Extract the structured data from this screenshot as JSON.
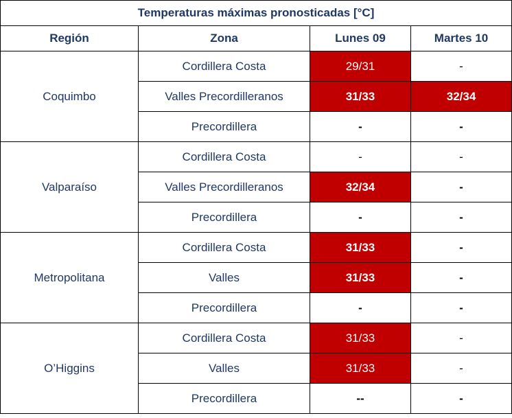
{
  "title": "Temperaturas máximas pronosticadas [°C]",
  "columns": [
    "Región",
    "Zona",
    "Lunes 09",
    "Martes 10"
  ],
  "colors": {
    "alert": "#c00000",
    "header_text": "#1f3864"
  },
  "regions": [
    {
      "name": "Coquimbo",
      "rows": [
        {
          "zone": "Cordillera Costa",
          "mon": {
            "text": "29/31",
            "alert": true,
            "bold": false
          },
          "tue": {
            "text": "-",
            "alert": false,
            "bold": false
          }
        },
        {
          "zone": "Valles Precordilleranos",
          "mon": {
            "text": "31/33",
            "alert": true,
            "bold": true
          },
          "tue": {
            "text": "32/34",
            "alert": true,
            "bold": true
          }
        },
        {
          "zone": "Precordillera",
          "mon": {
            "text": "-",
            "alert": false,
            "bold": true
          },
          "tue": {
            "text": "-",
            "alert": false,
            "bold": true
          }
        }
      ]
    },
    {
      "name": "Valparaíso",
      "rows": [
        {
          "zone": "Cordillera Costa",
          "mon": {
            "text": "-",
            "alert": false,
            "bold": false
          },
          "tue": {
            "text": "-",
            "alert": false,
            "bold": false
          }
        },
        {
          "zone": "Valles Precordilleranos",
          "mon": {
            "text": "32/34",
            "alert": true,
            "bold": true
          },
          "tue": {
            "text": "-",
            "alert": false,
            "bold": true
          }
        },
        {
          "zone": "Precordillera",
          "mon": {
            "text": "-",
            "alert": false,
            "bold": true
          },
          "tue": {
            "text": "-",
            "alert": false,
            "bold": true
          }
        }
      ]
    },
    {
      "name": "Metropolitana",
      "rows": [
        {
          "zone": "Cordillera Costa",
          "mon": {
            "text": "31/33",
            "alert": true,
            "bold": true
          },
          "tue": {
            "text": "-",
            "alert": false,
            "bold": true
          }
        },
        {
          "zone": "Valles",
          "mon": {
            "text": "31/33",
            "alert": true,
            "bold": true
          },
          "tue": {
            "text": "-",
            "alert": false,
            "bold": true
          }
        },
        {
          "zone": "Precordillera",
          "mon": {
            "text": "-",
            "alert": false,
            "bold": true
          },
          "tue": {
            "text": "-",
            "alert": false,
            "bold": true
          }
        }
      ]
    },
    {
      "name": "O’Higgins",
      "rows": [
        {
          "zone": "Cordillera Costa",
          "mon": {
            "text": "31/33",
            "alert": true,
            "bold": false
          },
          "tue": {
            "text": "-",
            "alert": false,
            "bold": false
          }
        },
        {
          "zone": "Valles",
          "mon": {
            "text": "31/33",
            "alert": true,
            "bold": false
          },
          "tue": {
            "text": "-",
            "alert": false,
            "bold": false
          }
        },
        {
          "zone": "Precordillera",
          "mon": {
            "text": "--",
            "alert": false,
            "bold": true
          },
          "tue": {
            "text": "-",
            "alert": false,
            "bold": true
          }
        }
      ]
    }
  ]
}
